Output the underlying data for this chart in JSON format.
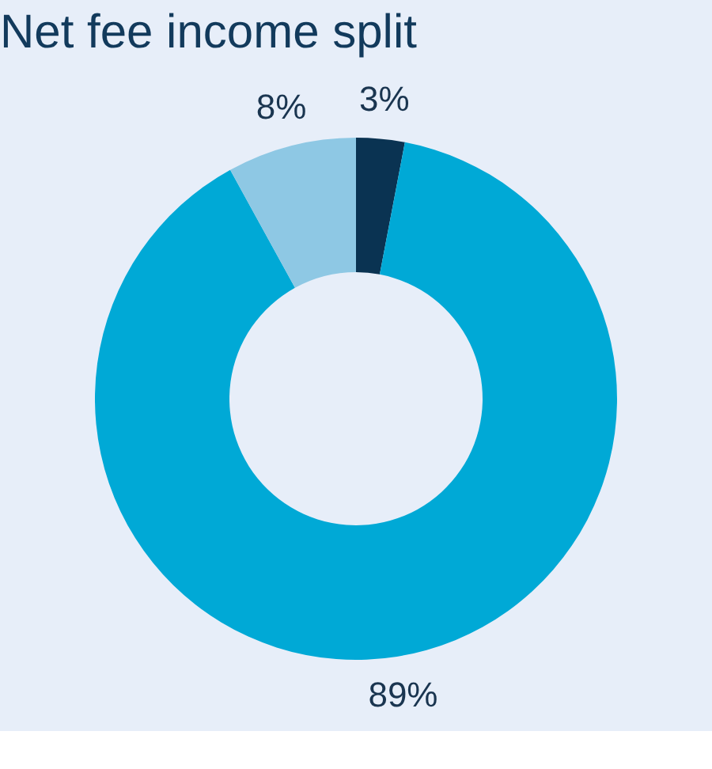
{
  "chart_data": {
    "type": "donut",
    "title": "Net fee income split",
    "categories": [
      null,
      null,
      null
    ],
    "values": [
      3,
      89,
      8
    ],
    "colors": [
      "#0a3352",
      "#00a9d6",
      "#8ec8e4"
    ],
    "value_labels": [
      "3%",
      "89%",
      "8%"
    ],
    "legend": false
  }
}
